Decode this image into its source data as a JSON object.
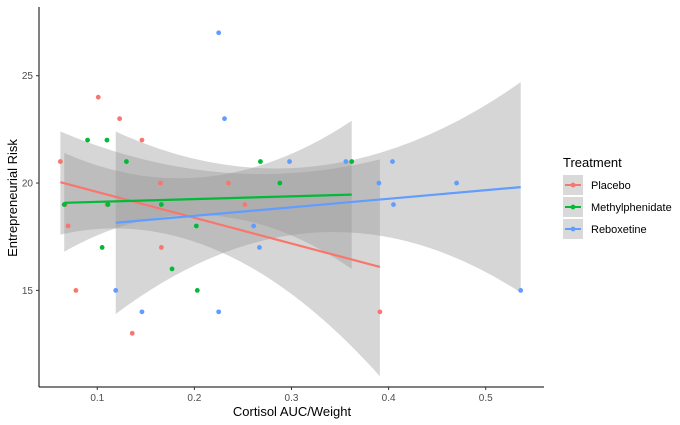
{
  "chart_data": {
    "type": "scatter",
    "title": "",
    "xlabel": "Cortisol AUC/Weight",
    "ylabel": "Entrepreneurial Risk",
    "xlim": [
      0.04,
      0.56
    ],
    "ylim": [
      10.5,
      28.2
    ],
    "x_ticks": [
      0.1,
      0.2,
      0.3,
      0.4,
      0.5
    ],
    "x_tick_labels": [
      "0.1",
      "0.2",
      "0.3",
      "0.4",
      "0.5"
    ],
    "y_ticks": [
      15,
      20,
      25
    ],
    "y_tick_labels": [
      "15",
      "20",
      "25"
    ],
    "grid": false,
    "legend": {
      "title": "Treatment",
      "position": "right"
    },
    "series": [
      {
        "name": "Placebo",
        "color": "#F8766D",
        "points": [
          [
            0.062,
            21
          ],
          [
            0.067,
            19
          ],
          [
            0.07,
            18
          ],
          [
            0.078,
            15
          ],
          [
            0.101,
            24
          ],
          [
            0.11,
            19
          ],
          [
            0.123,
            23
          ],
          [
            0.136,
            13
          ],
          [
            0.146,
            22
          ],
          [
            0.165,
            20
          ],
          [
            0.166,
            17
          ],
          [
            0.235,
            20
          ],
          [
            0.252,
            19
          ],
          [
            0.391,
            14
          ]
        ],
        "fit": {
          "x_start": 0.062,
          "y_start": 20.04,
          "x_end": 0.391,
          "y_end": 16.09
        },
        "band": {
          "upper_start": 22.4,
          "upper_mid": 20.5,
          "upper_end": 21.1,
          "lower_start": 17.6,
          "lower_mid": 16.8,
          "lower_end": 11.0
        }
      },
      {
        "name": "Methylphenidate",
        "color": "#00BA38",
        "points": [
          [
            0.066,
            19
          ],
          [
            0.09,
            22
          ],
          [
            0.105,
            17
          ],
          [
            0.11,
            22
          ],
          [
            0.111,
            19
          ],
          [
            0.13,
            21
          ],
          [
            0.166,
            19
          ],
          [
            0.177,
            16
          ],
          [
            0.202,
            18
          ],
          [
            0.203,
            15
          ],
          [
            0.268,
            21
          ],
          [
            0.288,
            20
          ],
          [
            0.362,
            21
          ]
        ],
        "fit": {
          "x_start": 0.066,
          "y_start": 19.08,
          "x_end": 0.362,
          "y_end": 19.46
        },
        "band": {
          "upper_start": 21.4,
          "upper_mid": 20.3,
          "upper_end": 22.9,
          "lower_start": 16.8,
          "lower_mid": 18.5,
          "lower_end": 16.0
        }
      },
      {
        "name": "Reboxetine",
        "color": "#619CFF",
        "points": [
          [
            0.119,
            15
          ],
          [
            0.146,
            14
          ],
          [
            0.225,
            27
          ],
          [
            0.225,
            14
          ],
          [
            0.231,
            23
          ],
          [
            0.261,
            18
          ],
          [
            0.267,
            17
          ],
          [
            0.298,
            21
          ],
          [
            0.356,
            21
          ],
          [
            0.39,
            20
          ],
          [
            0.404,
            21
          ],
          [
            0.405,
            19
          ],
          [
            0.47,
            20
          ],
          [
            0.536,
            15
          ]
        ],
        "fit": {
          "x_start": 0.119,
          "y_start": 18.15,
          "x_end": 0.536,
          "y_end": 19.81
        },
        "band": {
          "upper_start": 22.4,
          "upper_mid": 20.8,
          "upper_end": 24.7,
          "lower_start": 13.9,
          "lower_mid": 17.7,
          "lower_end": 14.9
        }
      }
    ]
  }
}
